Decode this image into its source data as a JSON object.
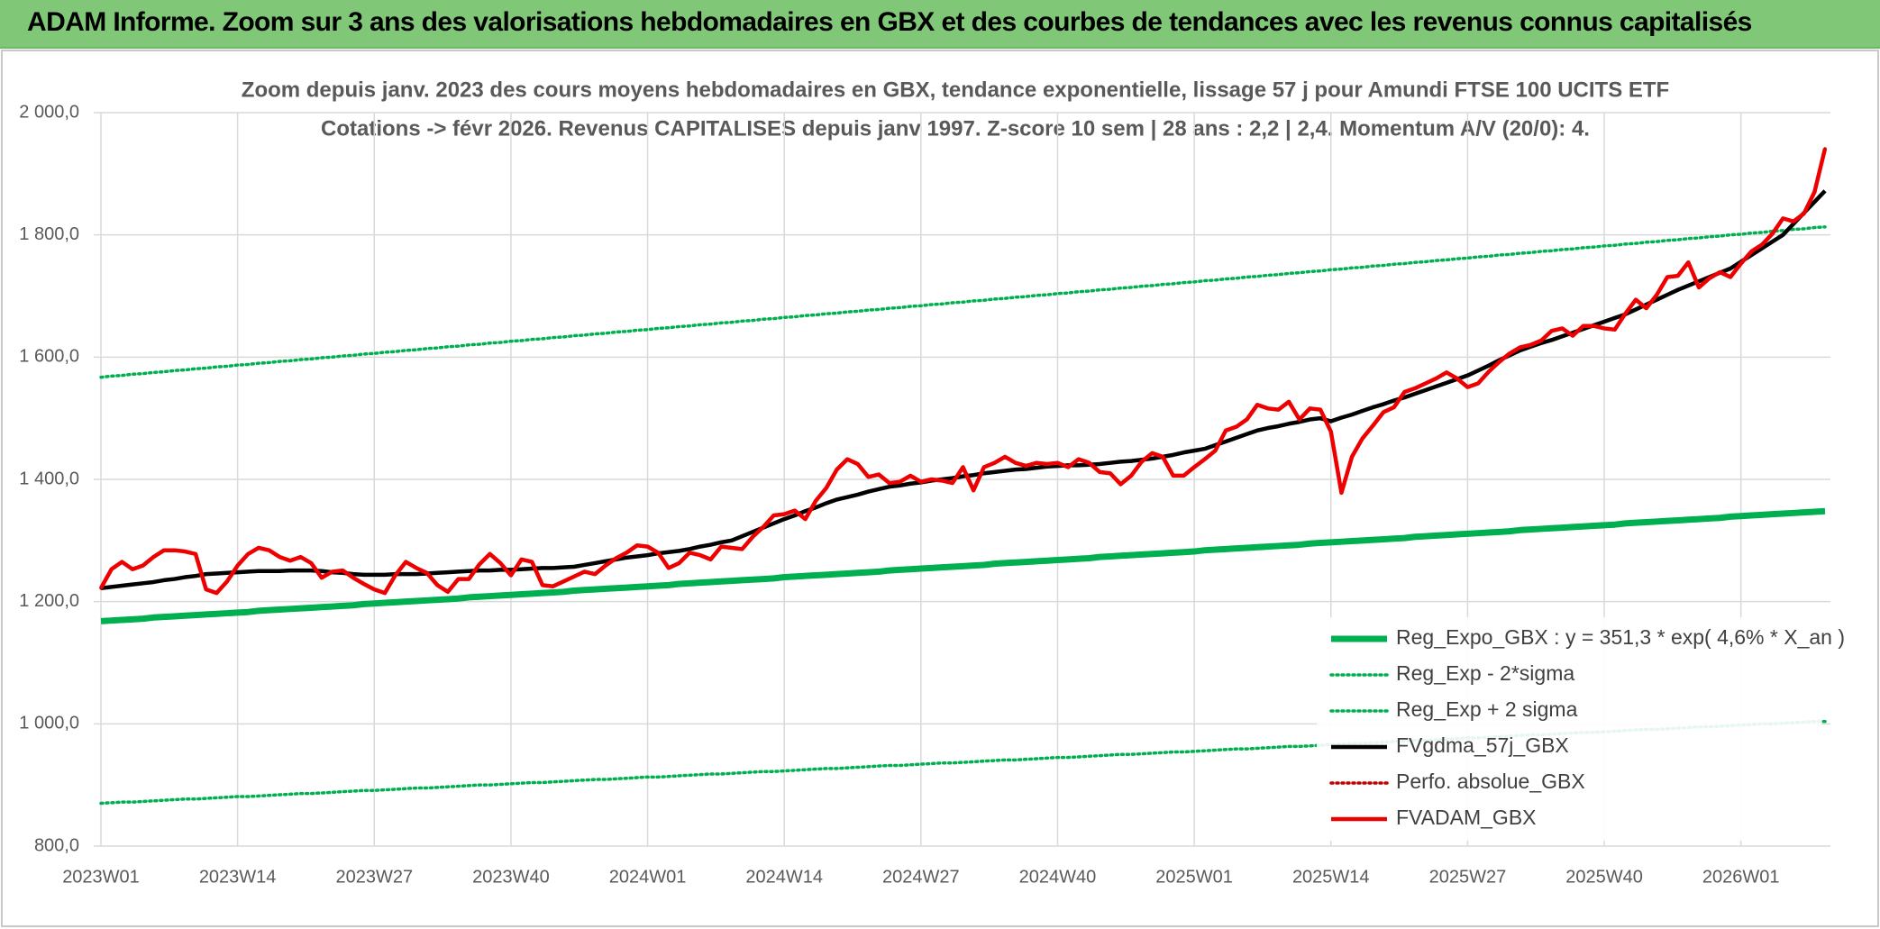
{
  "header": {
    "title": "ADAM Informe. Zoom sur 3 ans des valorisations hebdomadaires en GBX et des courbes de tendances avec les revenus connus capitalisés"
  },
  "chart_data": {
    "type": "line",
    "title": [
      "Zoom depuis janv. 2023 des cours moyens hebdomadaires en GBX, tendance exponentielle, lissage 57 j pour Amundi FTSE 100 UCITS ETF",
      "Cotations -> févr 2026. Revenus CAPITALISES depuis janv 1997. Z-score 10 sem | 28 ans : 2,2 | 2,4. Momentum A/V (20/0): 4."
    ],
    "categories": [
      "2023W01",
      null,
      null,
      null,
      null,
      null,
      null,
      null,
      null,
      null,
      null,
      null,
      null,
      "2023W14",
      null,
      null,
      null,
      null,
      null,
      null,
      null,
      null,
      null,
      null,
      null,
      null,
      "2023W27",
      null,
      null,
      null,
      null,
      null,
      null,
      null,
      null,
      null,
      null,
      null,
      null,
      "2023W40",
      null,
      null,
      null,
      null,
      null,
      null,
      null,
      null,
      null,
      null,
      null,
      null,
      "2024W01",
      null,
      null,
      null,
      null,
      null,
      null,
      null,
      null,
      null,
      null,
      null,
      null,
      "2024W14",
      null,
      null,
      null,
      null,
      null,
      null,
      null,
      null,
      null,
      null,
      null,
      null,
      "2024W27",
      null,
      null,
      null,
      null,
      null,
      null,
      null,
      null,
      null,
      null,
      null,
      null,
      "2024W40",
      null,
      null,
      null,
      null,
      null,
      null,
      null,
      null,
      null,
      null,
      null,
      null,
      "2025W01",
      null,
      null,
      null,
      null,
      null,
      null,
      null,
      null,
      null,
      null,
      null,
      null,
      "2025W14",
      null,
      null,
      null,
      null,
      null,
      null,
      null,
      null,
      null,
      null,
      null,
      null,
      "2025W27",
      null,
      null,
      null,
      null,
      null,
      null,
      null,
      null,
      null,
      null,
      null,
      null,
      "2025W40",
      null,
      null,
      null,
      null,
      null,
      null,
      null,
      null,
      null,
      null,
      null,
      null,
      "2026W01",
      null,
      null,
      null,
      null,
      null,
      null,
      null,
      null
    ],
    "ylim": [
      800,
      2000
    ],
    "yticks": [
      {
        "value": 800,
        "label": "800,0"
      },
      {
        "value": 1000,
        "label": "1 000,0"
      },
      {
        "value": 1200,
        "label": "1 200,0"
      },
      {
        "value": 1400,
        "label": "1 400,0"
      },
      {
        "value": 1600,
        "label": "1 600,0"
      },
      {
        "value": 1800,
        "label": "1 800,0"
      },
      {
        "value": 2000,
        "label": "2 000,0"
      }
    ],
    "grid": true,
    "legend": "bottom-right",
    "series": [
      {
        "name": "Reg_Expo_GBX : y = 351,3 * exp( 4,6% *  X_an )",
        "color": "#00b050",
        "style": "thick",
        "values": [
          1168,
          1169,
          1170,
          1171,
          1172,
          1174,
          1175,
          1176,
          1177,
          1178,
          1179,
          1180,
          1181,
          1182,
          1183,
          1185,
          1186,
          1187,
          1188,
          1189,
          1190,
          1191,
          1192,
          1193,
          1194,
          1196,
          1197,
          1198,
          1199,
          1200,
          1201,
          1202,
          1203,
          1204,
          1205,
          1207,
          1208,
          1209,
          1210,
          1211,
          1212,
          1213,
          1214,
          1215,
          1216,
          1218,
          1219,
          1220,
          1221,
          1222,
          1223,
          1224,
          1225,
          1226,
          1227,
          1229,
          1230,
          1231,
          1232,
          1233,
          1234,
          1235,
          1236,
          1237,
          1238,
          1240,
          1241,
          1242,
          1243,
          1244,
          1245,
          1246,
          1247,
          1248,
          1249,
          1251,
          1252,
          1253,
          1254,
          1255,
          1256,
          1257,
          1258,
          1259,
          1260,
          1262,
          1263,
          1264,
          1265,
          1266,
          1267,
          1268,
          1269,
          1270,
          1271,
          1273,
          1274,
          1275,
          1276,
          1277,
          1278,
          1279,
          1280,
          1281,
          1282,
          1284,
          1285,
          1286,
          1287,
          1288,
          1289,
          1290,
          1291,
          1292,
          1293,
          1295,
          1296,
          1297,
          1298,
          1299,
          1300,
          1301,
          1302,
          1303,
          1304,
          1306,
          1307,
          1308,
          1309,
          1310,
          1311,
          1312,
          1313,
          1314,
          1315,
          1317,
          1318,
          1319,
          1320,
          1321,
          1322,
          1323,
          1324,
          1325,
          1326,
          1328,
          1329,
          1330,
          1331,
          1332,
          1333,
          1334,
          1335,
          1336,
          1337,
          1339,
          1340,
          1341,
          1342,
          1343,
          1344,
          1345,
          1346,
          1347,
          1348
        ]
      },
      {
        "name": "Reg_Exp - 2*sigma",
        "color": "#00b050",
        "style": "dotted",
        "values": [
          870,
          871,
          872,
          872,
          873,
          874,
          875,
          876,
          877,
          877,
          878,
          879,
          880,
          881,
          881,
          882,
          883,
          884,
          885,
          886,
          886,
          887,
          888,
          889,
          890,
          891,
          891,
          892,
          893,
          894,
          895,
          895,
          896,
          897,
          898,
          899,
          900,
          900,
          901,
          902,
          903,
          904,
          904,
          905,
          906,
          907,
          908,
          909,
          909,
          910,
          911,
          912,
          913,
          913,
          914,
          915,
          916,
          917,
          918,
          918,
          919,
          920,
          921,
          922,
          922,
          923,
          924,
          925,
          926,
          927,
          927,
          928,
          929,
          930,
          931,
          932,
          932,
          933,
          934,
          935,
          936,
          936,
          937,
          938,
          939,
          940,
          941,
          941,
          942,
          943,
          944,
          945,
          945,
          946,
          947,
          948,
          949,
          950,
          950,
          951,
          952,
          953,
          954,
          954,
          955,
          956,
          957,
          958,
          959,
          959,
          960,
          961,
          962,
          963,
          963,
          964,
          965,
          966,
          967,
          968,
          968,
          969,
          970,
          971,
          972,
          973,
          973,
          974,
          975,
          976,
          977,
          977,
          978,
          979,
          980,
          981,
          982,
          982,
          983,
          984,
          985,
          986,
          986,
          987,
          988,
          989,
          990,
          991,
          991,
          992,
          993,
          994,
          995,
          995,
          996,
          997,
          998,
          999,
          1000,
          1000,
          1001,
          1002,
          1003,
          1004,
          1004
        ]
      },
      {
        "name": "Reg_Exp + 2 sigma",
        "color": "#00b050",
        "style": "dotted",
        "values": [
          1567,
          1569,
          1570,
          1572,
          1573,
          1575,
          1576,
          1578,
          1579,
          1581,
          1582,
          1584,
          1585,
          1587,
          1588,
          1590,
          1591,
          1593,
          1594,
          1596,
          1597,
          1599,
          1600,
          1602,
          1603,
          1605,
          1606,
          1608,
          1609,
          1611,
          1612,
          1614,
          1615,
          1617,
          1618,
          1620,
          1621,
          1623,
          1624,
          1626,
          1627,
          1629,
          1630,
          1632,
          1633,
          1635,
          1636,
          1638,
          1639,
          1641,
          1642,
          1644,
          1645,
          1647,
          1648,
          1650,
          1651,
          1653,
          1654,
          1656,
          1657,
          1659,
          1660,
          1662,
          1663,
          1665,
          1666,
          1668,
          1669,
          1671,
          1672,
          1674,
          1675,
          1677,
          1678,
          1680,
          1681,
          1683,
          1684,
          1686,
          1687,
          1689,
          1690,
          1692,
          1693,
          1695,
          1696,
          1698,
          1699,
          1701,
          1702,
          1704,
          1705,
          1707,
          1708,
          1710,
          1711,
          1713,
          1714,
          1716,
          1717,
          1719,
          1720,
          1722,
          1723,
          1725,
          1726,
          1728,
          1729,
          1731,
          1732,
          1734,
          1735,
          1737,
          1738,
          1740,
          1741,
          1743,
          1744,
          1746,
          1747,
          1749,
          1750,
          1752,
          1753,
          1755,
          1756,
          1758,
          1759,
          1761,
          1762,
          1764,
          1765,
          1767,
          1768,
          1770,
          1771,
          1773,
          1774,
          1776,
          1777,
          1779,
          1780,
          1782,
          1783,
          1785,
          1786,
          1788,
          1789,
          1791,
          1792,
          1794,
          1795,
          1797,
          1798,
          1800,
          1801,
          1803,
          1804,
          1806,
          1807,
          1809,
          1810,
          1812,
          1813
        ]
      },
      {
        "name": "FVgdma_57j_GBX",
        "color": "#000000",
        "style": "solid",
        "values": [
          1222,
          1224,
          1226,
          1228,
          1230,
          1232,
          1235,
          1237,
          1240,
          1242,
          1245,
          1246,
          1247,
          1248,
          1249,
          1250,
          1250,
          1250,
          1251,
          1251,
          1251,
          1250,
          1248,
          1247,
          1245,
          1244,
          1244,
          1244,
          1245,
          1245,
          1245,
          1246,
          1247,
          1248,
          1249,
          1250,
          1251,
          1251,
          1252,
          1252,
          1253,
          1254,
          1255,
          1255,
          1256,
          1257,
          1260,
          1263,
          1266,
          1269,
          1272,
          1274,
          1276,
          1279,
          1281,
          1283,
          1286,
          1290,
          1293,
          1297,
          1300,
          1307,
          1314,
          1321,
          1328,
          1335,
          1341,
          1348,
          1354,
          1361,
          1367,
          1371,
          1375,
          1380,
          1384,
          1388,
          1390,
          1393,
          1395,
          1398,
          1400,
          1402,
          1405,
          1407,
          1410,
          1412,
          1414,
          1416,
          1417,
          1419,
          1421,
          1422,
          1423,
          1423,
          1424,
          1425,
          1427,
          1429,
          1430,
          1432,
          1434,
          1437,
          1440,
          1444,
          1447,
          1450,
          1456,
          1462,
          1468,
          1474,
          1480,
          1484,
          1487,
          1491,
          1494,
          1498,
          1500,
          1495,
          1501,
          1506,
          1512,
          1518,
          1523,
          1529,
          1534,
          1540,
          1546,
          1552,
          1558,
          1564,
          1570,
          1578,
          1586,
          1595,
          1603,
          1611,
          1617,
          1623,
          1628,
          1634,
          1640,
          1646,
          1652,
          1658,
          1664,
          1670,
          1678,
          1686,
          1694,
          1702,
          1710,
          1717,
          1724,
          1731,
          1738,
          1745,
          1756,
          1767,
          1778,
          1789,
          1800,
          1818,
          1836,
          1854,
          1872
        ]
      },
      {
        "name": "Perfo. absolue_GBX",
        "color": "#c00000",
        "style": "dotted",
        "values": [
          1222,
          1253,
          1265,
          1253,
          1259,
          1273,
          1284,
          1284,
          1282,
          1278,
          1220,
          1214,
          1233,
          1259,
          1278,
          1288,
          1284,
          1273,
          1267,
          1273,
          1263,
          1239,
          1249,
          1251,
          1239,
          1229,
          1220,
          1214,
          1243,
          1265,
          1255,
          1247,
          1227,
          1216,
          1237,
          1237,
          1261,
          1278,
          1263,
          1243,
          1269,
          1265,
          1227,
          1225,
          1233,
          1241,
          1249,
          1245,
          1259,
          1271,
          1280,
          1292,
          1290,
          1280,
          1255,
          1263,
          1280,
          1276,
          1269,
          1290,
          1288,
          1286,
          1306,
          1322,
          1341,
          1343,
          1349,
          1335,
          1365,
          1386,
          1416,
          1433,
          1425,
          1404,
          1408,
          1394,
          1396,
          1406,
          1396,
          1400,
          1398,
          1394,
          1420,
          1382,
          1420,
          1427,
          1437,
          1427,
          1422,
          1427,
          1425,
          1427,
          1420,
          1433,
          1427,
          1412,
          1410,
          1392,
          1406,
          1429,
          1443,
          1437,
          1406,
          1406,
          1420,
          1433,
          1447,
          1480,
          1486,
          1498,
          1522,
          1516,
          1514,
          1527,
          1498,
          1516,
          1514,
          1478,
          1378,
          1437,
          1467,
          1488,
          1510,
          1518,
          1543,
          1549,
          1557,
          1565,
          1575,
          1565,
          1551,
          1557,
          1576,
          1592,
          1606,
          1616,
          1620,
          1627,
          1643,
          1647,
          1635,
          1651,
          1651,
          1647,
          1645,
          1671,
          1694,
          1680,
          1702,
          1731,
          1733,
          1755,
          1714,
          1729,
          1739,
          1731,
          1753,
          1773,
          1784,
          1802,
          1827,
          1822,
          1835,
          1870,
          1941
        ]
      },
      {
        "name": "FVADAM_GBX",
        "color": "#ee0000",
        "style": "solid",
        "values": [
          1222,
          1253,
          1265,
          1253,
          1259,
          1273,
          1284,
          1284,
          1282,
          1278,
          1220,
          1214,
          1233,
          1259,
          1278,
          1288,
          1284,
          1273,
          1267,
          1273,
          1263,
          1239,
          1249,
          1251,
          1239,
          1229,
          1220,
          1214,
          1243,
          1265,
          1255,
          1247,
          1227,
          1216,
          1237,
          1237,
          1261,
          1278,
          1263,
          1243,
          1269,
          1265,
          1227,
          1225,
          1233,
          1241,
          1249,
          1245,
          1259,
          1271,
          1280,
          1292,
          1290,
          1280,
          1255,
          1263,
          1280,
          1276,
          1269,
          1290,
          1288,
          1286,
          1306,
          1322,
          1341,
          1343,
          1349,
          1335,
          1365,
          1386,
          1416,
          1433,
          1425,
          1404,
          1408,
          1394,
          1396,
          1406,
          1396,
          1400,
          1398,
          1394,
          1420,
          1382,
          1420,
          1427,
          1437,
          1427,
          1422,
          1427,
          1425,
          1427,
          1420,
          1433,
          1427,
          1412,
          1410,
          1392,
          1406,
          1429,
          1443,
          1437,
          1406,
          1406,
          1420,
          1433,
          1447,
          1480,
          1486,
          1498,
          1522,
          1516,
          1514,
          1527,
          1498,
          1516,
          1514,
          1478,
          1378,
          1437,
          1467,
          1488,
          1510,
          1518,
          1543,
          1549,
          1557,
          1565,
          1575,
          1565,
          1551,
          1557,
          1576,
          1592,
          1606,
          1616,
          1620,
          1627,
          1643,
          1647,
          1635,
          1651,
          1651,
          1647,
          1645,
          1671,
          1694,
          1680,
          1702,
          1731,
          1733,
          1755,
          1714,
          1729,
          1739,
          1731,
          1753,
          1773,
          1784,
          1802,
          1827,
          1822,
          1835,
          1870,
          1941
        ]
      }
    ]
  }
}
